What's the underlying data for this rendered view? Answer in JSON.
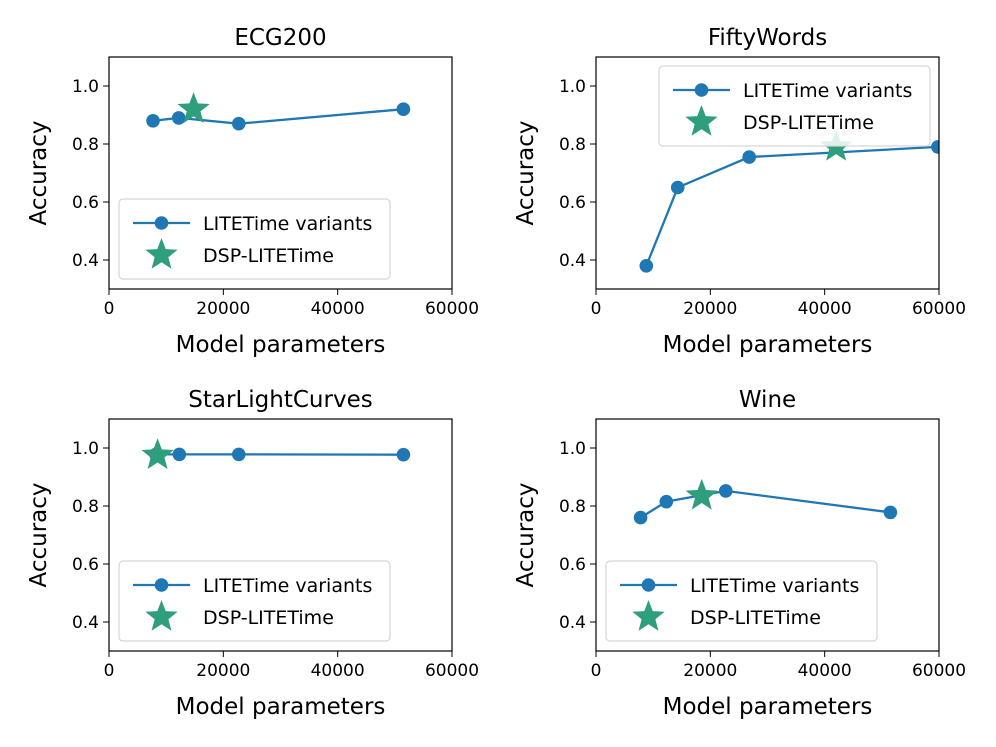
{
  "figure": {
    "background": "#ffffff"
  },
  "chart_data": [
    {
      "type": "line",
      "title": "ECG200",
      "xlabel": "Model parameters",
      "ylabel": "Accuracy",
      "xlim": [
        0,
        60000
      ],
      "ylim": [
        0.3,
        1.1
      ],
      "xticks": [
        0,
        20000,
        40000,
        60000
      ],
      "yticks": [
        0.4,
        0.6,
        0.8,
        1.0
      ],
      "xtick_labels": [
        "0",
        "20000",
        "40000",
        "60000"
      ],
      "ytick_labels": [
        "0.4",
        "0.6",
        "0.8",
        "1.0"
      ],
      "legend_position": "lower-left",
      "series": [
        {
          "name": "LITETime variants",
          "marker": "circle",
          "color": "#1f77b4",
          "x": [
            7700,
            12200,
            22700,
            51500
          ],
          "y": [
            0.88,
            0.89,
            0.87,
            0.92
          ]
        },
        {
          "name": "DSP-LITETime",
          "marker": "star",
          "color": "#2e9e7c",
          "x": [
            14800
          ],
          "y": [
            0.92
          ]
        }
      ]
    },
    {
      "type": "line",
      "title": "FiftyWords",
      "xlabel": "Model parameters",
      "ylabel": "Accuracy",
      "xlim": [
        0,
        60000
      ],
      "ylim": [
        0.3,
        1.1
      ],
      "xticks": [
        0,
        20000,
        40000,
        60000
      ],
      "yticks": [
        0.4,
        0.6,
        0.8,
        1.0
      ],
      "xtick_labels": [
        "0",
        "20000",
        "40000",
        "60000"
      ],
      "ytick_labels": [
        "0.4",
        "0.6",
        "0.8",
        "1.0"
      ],
      "legend_position": "top-right",
      "series": [
        {
          "name": "LITETime variants",
          "marker": "circle",
          "color": "#1f77b4",
          "x": [
            8800,
            14300,
            26800,
            59800
          ],
          "y": [
            0.38,
            0.65,
            0.755,
            0.79
          ]
        },
        {
          "name": "DSP-LITETime",
          "marker": "star",
          "color": "#2e9e7c",
          "x": [
            42000
          ],
          "y": [
            0.79
          ]
        }
      ]
    },
    {
      "type": "line",
      "title": "StarLightCurves",
      "xlabel": "Model parameters",
      "ylabel": "Accuracy",
      "xlim": [
        0,
        60000
      ],
      "ylim": [
        0.3,
        1.1
      ],
      "xticks": [
        0,
        20000,
        40000,
        60000
      ],
      "yticks": [
        0.4,
        0.6,
        0.8,
        1.0
      ],
      "xtick_labels": [
        "0",
        "20000",
        "40000",
        "60000"
      ],
      "ytick_labels": [
        "0.4",
        "0.6",
        "0.8",
        "1.0"
      ],
      "legend_position": "lower-left",
      "series": [
        {
          "name": "LITETime variants",
          "marker": "circle",
          "color": "#1f77b4",
          "x": [
            8200,
            12300,
            22700,
            51500
          ],
          "y": [
            0.978,
            0.978,
            0.978,
            0.977
          ]
        },
        {
          "name": "DSP-LITETime",
          "marker": "star",
          "color": "#2e9e7c",
          "x": [
            8500
          ],
          "y": [
            0.975
          ]
        }
      ]
    },
    {
      "type": "line",
      "title": "Wine",
      "xlabel": "Model parameters",
      "ylabel": "Accuracy",
      "xlim": [
        0,
        60000
      ],
      "ylim": [
        0.3,
        1.1
      ],
      "xticks": [
        0,
        20000,
        40000,
        60000
      ],
      "yticks": [
        0.4,
        0.6,
        0.8,
        1.0
      ],
      "xtick_labels": [
        "0",
        "20000",
        "40000",
        "60000"
      ],
      "ytick_labels": [
        "0.4",
        "0.6",
        "0.8",
        "1.0"
      ],
      "legend_position": "lower-left",
      "series": [
        {
          "name": "LITETime variants",
          "marker": "circle",
          "color": "#1f77b4",
          "x": [
            7800,
            12300,
            22700,
            51500
          ],
          "y": [
            0.76,
            0.815,
            0.852,
            0.778
          ]
        },
        {
          "name": "DSP-LITETime",
          "marker": "star",
          "color": "#2e9e7c",
          "x": [
            18500
          ],
          "y": [
            0.835
          ]
        }
      ]
    }
  ]
}
